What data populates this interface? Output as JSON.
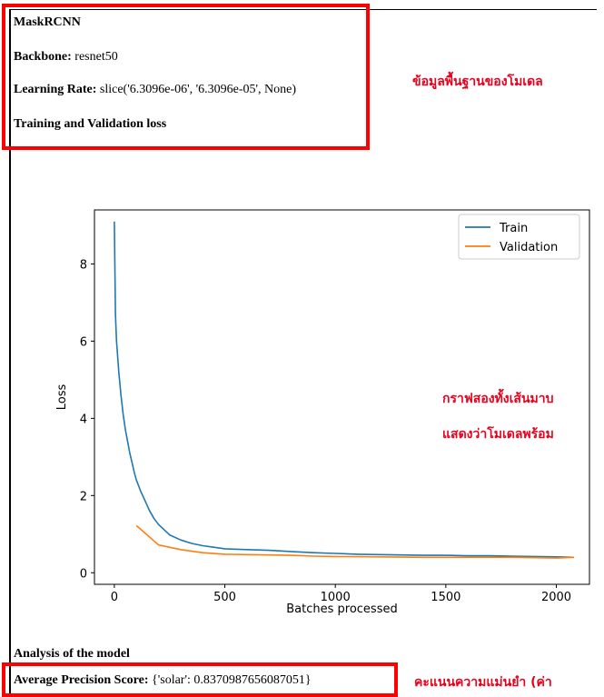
{
  "model": {
    "name": "MaskRCNN",
    "backbone_label": "Backbone:",
    "backbone_value": "resnet50",
    "lr_label": "Learning Rate:",
    "lr_value": "slice('6.3096e-06', '6.3096e-05', None)",
    "loss_heading": "Training and Validation loss"
  },
  "annotations": {
    "model_info": "ข้อมูลพื้นฐานของโมเดล",
    "graph_line1": "กราฟสองทั้งเส้นมาบ",
    "graph_line2": "แสดงว่าโมเดลพร้อม",
    "score_note": "คะแนนความแม่นยำ (ค่า"
  },
  "analysis": {
    "heading": "Analysis of the model",
    "ap_label": "Average Precision Score:",
    "ap_value": "{'solar': 0.8370987656087051}"
  },
  "colors": {
    "train": "#1f77b4",
    "validation": "#ff7f0e",
    "annotation_red": "#ff0000"
  },
  "chart_data": {
    "type": "line",
    "title": "",
    "xlabel": "Batches processed",
    "ylabel": "Loss",
    "xlim": [
      -90,
      2150
    ],
    "ylim": [
      -0.3,
      9.4
    ],
    "xticks": [
      0,
      500,
      1000,
      1500,
      2000
    ],
    "yticks": [
      0,
      2,
      4,
      6,
      8
    ],
    "grid": false,
    "legend": "top-right",
    "series": [
      {
        "name": "Train",
        "x": [
          0,
          5,
          10,
          20,
          30,
          40,
          50,
          60,
          70,
          80,
          90,
          100,
          120,
          140,
          160,
          180,
          200,
          250,
          300,
          350,
          400,
          450,
          500,
          600,
          700,
          800,
          900,
          1000,
          1100,
          1200,
          1300,
          1400,
          1500,
          1600,
          1700,
          1800,
          1900,
          2000,
          2080
        ],
        "y": [
          9.1,
          6.7,
          6.0,
          5.2,
          4.6,
          4.1,
          3.7,
          3.4,
          3.1,
          2.85,
          2.6,
          2.4,
          2.1,
          1.85,
          1.6,
          1.4,
          1.25,
          0.98,
          0.85,
          0.76,
          0.7,
          0.66,
          0.62,
          0.6,
          0.58,
          0.55,
          0.52,
          0.5,
          0.48,
          0.47,
          0.46,
          0.45,
          0.45,
          0.44,
          0.44,
          0.43,
          0.42,
          0.41,
          0.4
        ]
      },
      {
        "name": "Validation",
        "x": [
          100,
          200,
          300,
          400,
          500,
          600,
          700,
          800,
          900,
          1000,
          1200,
          1400,
          1600,
          1800,
          2000,
          2080
        ],
        "y": [
          1.22,
          0.72,
          0.6,
          0.52,
          0.48,
          0.47,
          0.46,
          0.45,
          0.43,
          0.42,
          0.41,
          0.4,
          0.4,
          0.4,
          0.38,
          0.4
        ]
      }
    ]
  }
}
